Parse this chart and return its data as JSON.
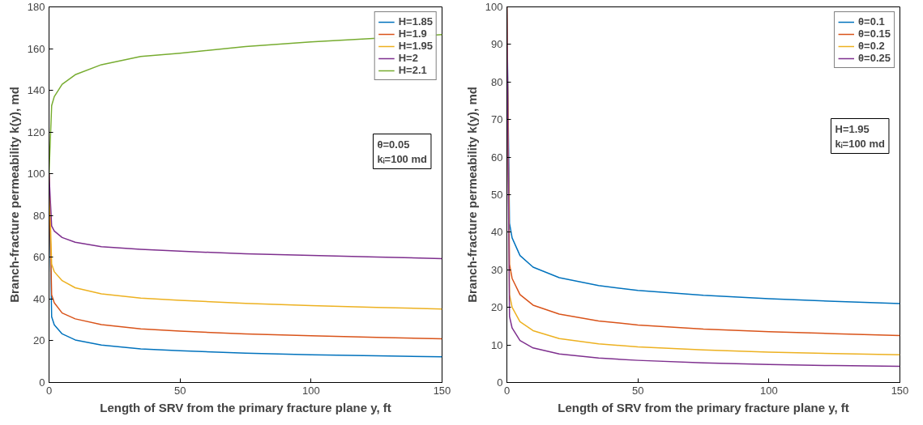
{
  "chart_data": [
    {
      "type": "line",
      "xlabel": "Length of SRV from the primary fracture plane y, ft",
      "ylabel": "Branch-fracture permeability k(y), md",
      "x": [
        0,
        1,
        2,
        5,
        10,
        20,
        35,
        50,
        75,
        100,
        125,
        150
      ],
      "series": [
        {
          "name": "H=1.85",
          "color": "#0072bd",
          "values": [
            100,
            31.5,
            27.6,
            23.3,
            20.4,
            17.9,
            16.1,
            15.2,
            14.1,
            13.3,
            12.8,
            12.3
          ]
        },
        {
          "name": "H=1.9",
          "color": "#d95319",
          "values": [
            100,
            42,
            38.2,
            33.3,
            30.5,
            27.7,
            25.7,
            24.6,
            23.3,
            22.4,
            21.6,
            20.9
          ]
        },
        {
          "name": "H=1.95",
          "color": "#edb120",
          "values": [
            100,
            56.7,
            53.1,
            48.8,
            45.4,
            42.5,
            40.4,
            39.4,
            37.9,
            36.9,
            36.0,
            35.2
          ]
        },
        {
          "name": "H=2",
          "color": "#7e2f8e",
          "values": [
            100,
            75,
            72.6,
            69.5,
            67.2,
            65.1,
            63.8,
            62.9,
            61.7,
            60.9,
            60.1,
            59.4
          ]
        },
        {
          "name": "H=2.1",
          "color": "#77ac30",
          "x": [
            0,
            1,
            2,
            5,
            10,
            20,
            35,
            50,
            75,
            100,
            150
          ],
          "values": [
            100,
            132.7,
            137,
            142.9,
            147.5,
            152.3,
            156.2,
            157.8,
            161.0,
            163.2,
            166.7
          ]
        }
      ],
      "annotations": [
        "θ=0.05",
        "kᵢ=100 md"
      ],
      "xlim": [
        0,
        150
      ],
      "xticks": [
        0,
        50,
        100,
        150
      ],
      "ylim": [
        0,
        180
      ],
      "yticks": [
        0,
        20,
        40,
        60,
        80,
        100,
        120,
        140,
        160,
        180
      ],
      "legend": "top right",
      "grid": false,
      "line_style": "solid"
    },
    {
      "type": "line",
      "xlabel": "Length of SRV from the primary fracture plane y, ft",
      "ylabel": "Branch-fracture permeability k(y), md",
      "x": [
        0,
        1,
        2,
        5,
        10,
        20,
        35,
        50,
        75,
        100,
        125,
        150
      ],
      "series": [
        {
          "name": "θ=0.1",
          "color": "#0072bd",
          "values": [
            100,
            42.4,
            38.5,
            33.8,
            30.7,
            27.9,
            25.8,
            24.5,
            23.2,
            22.3,
            21.6,
            21.0
          ]
        },
        {
          "name": "θ=0.15",
          "color": "#d95319",
          "values": [
            100,
            31.5,
            27.7,
            23.4,
            20.6,
            18.2,
            16.4,
            15.3,
            14.2,
            13.5,
            13.0,
            12.5
          ]
        },
        {
          "name": "θ=0.2",
          "color": "#edb120",
          "values": [
            100,
            23.4,
            20.0,
            16.2,
            13.8,
            11.7,
            10.3,
            9.5,
            8.7,
            8.1,
            7.7,
            7.4
          ]
        },
        {
          "name": "θ=0.25",
          "color": "#7e2f8e",
          "values": [
            100,
            17.6,
            14.5,
            11.2,
            9.2,
            7.6,
            6.5,
            5.9,
            5.2,
            4.8,
            4.5,
            4.3
          ]
        }
      ],
      "annotations": [
        "H=1.95",
        "kᵢ=100 md"
      ],
      "xlim": [
        0,
        150
      ],
      "xticks": [
        0,
        50,
        100,
        150
      ],
      "ylim": [
        0,
        100
      ],
      "yticks": [
        0,
        10,
        20,
        30,
        40,
        50,
        60,
        70,
        80,
        90,
        100
      ],
      "legend": "top right",
      "grid": false,
      "line_style": "solid"
    }
  ]
}
